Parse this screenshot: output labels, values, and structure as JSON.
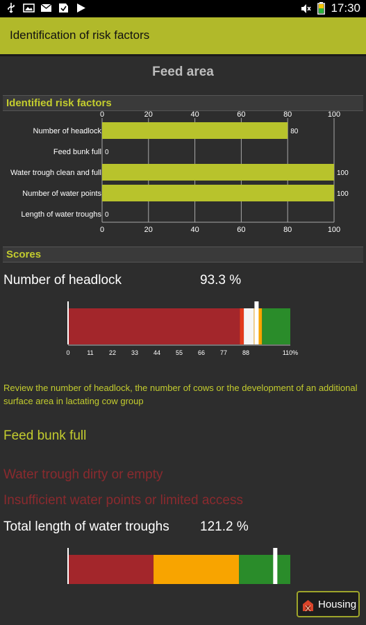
{
  "status_bar": {
    "time": "17:30",
    "left_icons": [
      "usb-icon",
      "image-icon",
      "mail-icon",
      "download-icon",
      "play-store-icon"
    ],
    "right_icons": [
      "mute-icon",
      "battery-icon"
    ]
  },
  "action_bar": {
    "title": "Identification of risk factors",
    "accent": "#b1b92a"
  },
  "page": {
    "title": "Feed area"
  },
  "risk_section": {
    "header": "Identified risk factors"
  },
  "chart_data": {
    "type": "bar",
    "orientation": "horizontal",
    "categories": [
      "Number of headlock",
      "Feed bunk full",
      "Water trough clean and full",
      "Number of water points",
      "Length of water troughs"
    ],
    "values": [
      80,
      0,
      100,
      100,
      0
    ],
    "value_labels": [
      "80",
      "0",
      "100",
      "100",
      "0"
    ],
    "xlim": [
      0,
      100
    ],
    "xticks": [
      "0",
      "20",
      "40",
      "60",
      "80",
      "100"
    ],
    "grid": true,
    "bar_color": "#b8c32c"
  },
  "scores_section": {
    "header": "Scores"
  },
  "score1": {
    "label": "Number of headlock",
    "value": "93.3 %",
    "gauge": {
      "ticks": [
        "0",
        "11",
        "22",
        "33",
        "44",
        "55",
        "66",
        "77",
        "88",
        "110%"
      ],
      "tick_values": [
        0,
        11,
        22,
        33,
        44,
        55,
        66,
        77,
        88,
        110
      ],
      "min": 0,
      "max": 110,
      "segments": [
        {
          "from": 0,
          "to": 85,
          "color": "#a3262b"
        },
        {
          "from": 85,
          "to": 87,
          "color": "#e23a1c"
        },
        {
          "from": 87,
          "to": 92,
          "color": "#f5f5f5"
        },
        {
          "from": 92,
          "to": 96,
          "color": "#f8a400"
        },
        {
          "from": 96,
          "to": 110,
          "color": "#2a8c2a"
        }
      ],
      "marker": 93.3
    }
  },
  "advice_text": "Review the number of headlock, the number of cows or the development of an additional surface area in lactating cow group",
  "feed_bunk_text": "Feed bunk full",
  "water_trough_text": "Water trough dirty or empty",
  "water_points_text": "Insufficient water points or limited access",
  "score2": {
    "label": "Total length of water troughs",
    "value": "121.2 %",
    "gauge": {
      "min": 0,
      "max": 130,
      "segments": [
        {
          "from": 0,
          "to": 50,
          "color": "#a3262b"
        },
        {
          "from": 50,
          "to": 100,
          "color": "#f8a400"
        },
        {
          "from": 100,
          "to": 130,
          "color": "#2a8c2a"
        }
      ],
      "marker": 121.2
    }
  },
  "nav": {
    "housing_label": "Housing"
  }
}
